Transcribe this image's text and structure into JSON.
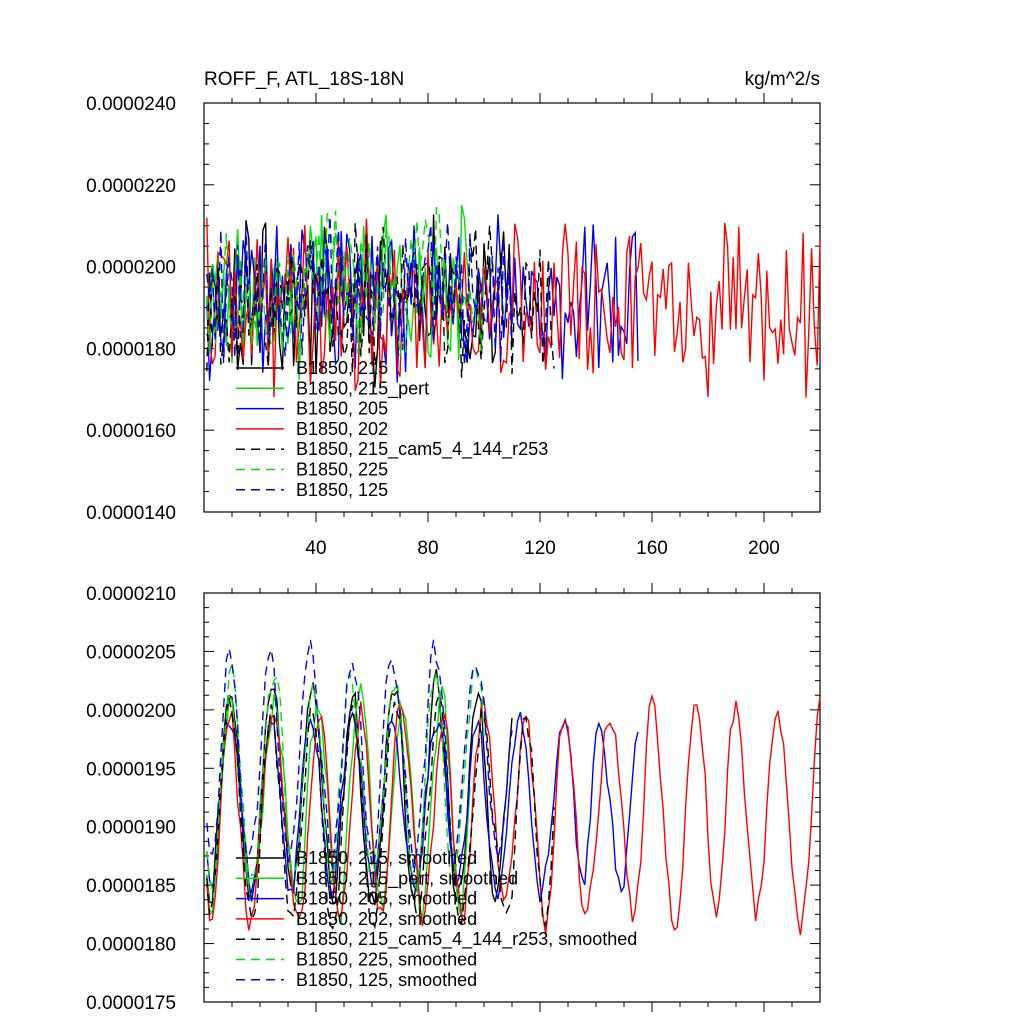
{
  "chart_data": [
    {
      "type": "line",
      "title_left": "ROFF_F, ATL_18S-18N",
      "title_right": "kg/m^2/s",
      "xlim": [
        0,
        220
      ],
      "ylim": [
        1.4e-05,
        2.4e-05
      ],
      "y_ticks": [
        "0.0000140",
        "0.0000160",
        "0.0000180",
        "0.0000200",
        "0.0000220",
        "0.0000240"
      ],
      "x_ticks": [
        "40",
        "80",
        "120",
        "160",
        "200"
      ],
      "legend_position": "lower-left",
      "series": [
        {
          "name": "B1850, 215",
          "color": "#000000",
          "dash": "solid",
          "length": 110,
          "base": 1.93e-05,
          "amp": 1.3e-06,
          "seed": 11
        },
        {
          "name": "B1850, 215_pert",
          "color": "#00e000",
          "dash": "solid",
          "length": 95,
          "base": 1.93e-05,
          "amp": 1.3e-06,
          "seed": 23
        },
        {
          "name": "B1850, 205",
          "color": "#0000ff",
          "dash": "solid",
          "length": 155,
          "base": 1.92e-05,
          "amp": 1.2e-06,
          "seed": 37
        },
        {
          "name": "B1850, 202",
          "color": "#ff0000",
          "dash": "solid",
          "length": 220,
          "base": 1.9e-05,
          "amp": 1.3e-06,
          "seed": 41
        },
        {
          "name": "B1850, 215_cam5_4_144_r253",
          "color": "#000000",
          "dash": "dashed",
          "length": 125,
          "base": 1.92e-05,
          "amp": 1.2e-06,
          "seed": 53
        },
        {
          "name": "B1850, 225",
          "color": "#00e000",
          "dash": "dashed",
          "length": 100,
          "base": 1.95e-05,
          "amp": 1.2e-06,
          "seed": 67
        },
        {
          "name": "B1850, 125",
          "color": "#0000ff",
          "dash": "dashed",
          "length": 110,
          "base": 1.95e-05,
          "amp": 1.2e-06,
          "seed": 79
        }
      ]
    },
    {
      "type": "line",
      "xlim": [
        0,
        220
      ],
      "ylim": [
        1.75e-05,
        2.1e-05
      ],
      "y_ticks": [
        "0.0000175",
        "0.0000180",
        "0.0000185",
        "0.0000190",
        "0.0000195",
        "0.0000200",
        "0.0000205",
        "0.0000210"
      ],
      "legend_position": "lower-left",
      "series": [
        {
          "name": "B1850, 215, smoothed",
          "color": "#000000",
          "dash": "solid",
          "length": 110,
          "base": 1.93e-05,
          "amp": 6e-07,
          "seed": 11
        },
        {
          "name": "B1850, 215_pert, smoothed",
          "color": "#00e000",
          "dash": "solid",
          "length": 95,
          "base": 1.92e-05,
          "amp": 6e-07,
          "seed": 23
        },
        {
          "name": "B1850, 205, smoothed",
          "color": "#0000ff",
          "dash": "solid",
          "length": 155,
          "base": 1.92e-05,
          "amp": 5e-07,
          "seed": 37
        },
        {
          "name": "B1850, 202, smoothed",
          "color": "#ff0000",
          "dash": "solid",
          "length": 220,
          "base": 1.91e-05,
          "amp": 6e-07,
          "seed": 41
        },
        {
          "name": "B1850, 215_cam5_4_144_r253, smoothed",
          "color": "#000000",
          "dash": "dashed",
          "length": 125,
          "base": 1.91e-05,
          "amp": 6e-07,
          "seed": 53
        },
        {
          "name": "B1850, 225, smoothed",
          "color": "#00e000",
          "dash": "dashed",
          "length": 100,
          "base": 1.94e-05,
          "amp": 6e-07,
          "seed": 67
        },
        {
          "name": "B1850, 125, smoothed",
          "color": "#0000ff",
          "dash": "dashed",
          "length": 110,
          "base": 1.96e-05,
          "amp": 6e-07,
          "seed": 79
        }
      ]
    }
  ]
}
